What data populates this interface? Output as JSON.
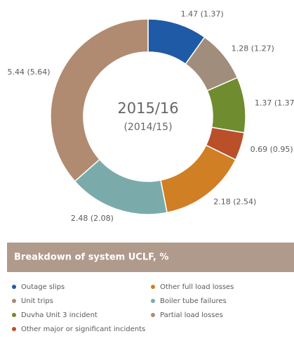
{
  "chart_data": {
    "type": "donut",
    "title": "Breakdown of system UCLF, %",
    "center_labels": [
      "2015/16",
      "(2014/15)"
    ],
    "categories": [
      "Outage slips",
      "Unit trips",
      "Duvha Unit 3 incident",
      "Other major or significant incidents",
      "Other full load losses",
      "Boiler tube failures",
      "Partial load losses"
    ],
    "values": [
      1.47,
      1.28,
      1.37,
      0.69,
      2.18,
      2.48,
      5.44
    ],
    "value_labels": [
      "1.47 (1.37)",
      "1.28 (1.27)",
      "1.37 (1.37)",
      "0.69 (0.95)",
      "2.18 (2.54)",
      "2.48 (2.08)",
      "5.44 (5.64)"
    ],
    "colors": [
      "#1f5aa6",
      "#a18d7c",
      "#6f8c2e",
      "#b9502a",
      "#d07f25",
      "#7aabaa",
      "#b08b71"
    ]
  }
}
